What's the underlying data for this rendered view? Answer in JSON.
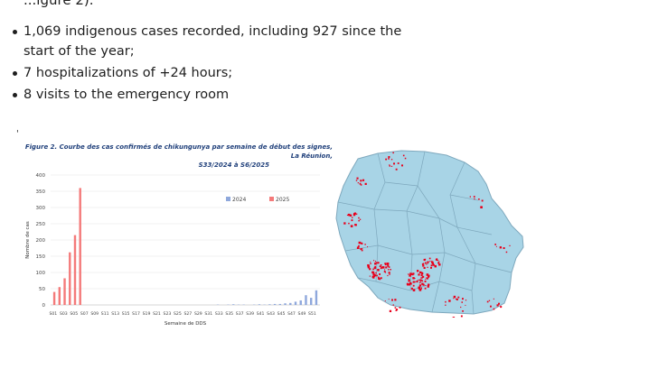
{
  "intro_partial": "...igure 2).",
  "bullets": [
    "1,069 indigenous cases recorded, including 927 since the start of the year;",
    "7 hospitalizations of +24 hours;",
    "8 visits to the emergency room"
  ],
  "stray_mark": "'",
  "figure": {
    "title_line1": "Figure 2. Courbe des cas confirmés de chikungunya par semaine de début des signes, La Réunion,",
    "title_line2": "S33/2024 à S6/2025"
  },
  "chart_data": {
    "type": "bar",
    "title": "Figure 2. Courbe des cas confirmés de chikungunya par semaine de début des signes, La Réunion, S33/2024 à S6/2025",
    "xlabel": "Semaine de DDS",
    "ylabel": "Nombre de cas",
    "ylim": [
      0,
      400
    ],
    "yticks": [
      0,
      50,
      100,
      150,
      200,
      250,
      300,
      350,
      400
    ],
    "grid": true,
    "legend_placement": "top-right",
    "categories": [
      "S01",
      "S02",
      "S03",
      "S04",
      "S05",
      "S06",
      "S07",
      "S08",
      "S09",
      "S10",
      "S11",
      "S12",
      "S13",
      "S14",
      "S15",
      "S16",
      "S17",
      "S18",
      "S19",
      "S20",
      "S21",
      "S22",
      "S23",
      "S24",
      "S25",
      "S26",
      "S27",
      "S28",
      "S29",
      "S30",
      "S31",
      "S32",
      "S33",
      "S34",
      "S35",
      "S36",
      "S37",
      "S38",
      "S39",
      "S40",
      "S41",
      "S42",
      "S43",
      "S44",
      "S45",
      "S46",
      "S47",
      "S48",
      "S49",
      "S50",
      "S51",
      "S52"
    ],
    "tick_labels": [
      "S01",
      "S03",
      "S05",
      "S07",
      "S09",
      "S11",
      "S13",
      "S15",
      "S17",
      "S19",
      "S21",
      "S23",
      "S25",
      "S27",
      "S29",
      "S31",
      "S33",
      "S35",
      "S37",
      "S39",
      "S41",
      "S43",
      "S45",
      "S47",
      "S49",
      "S51"
    ],
    "series": [
      {
        "name": "2024",
        "color": "#8fa8dc",
        "values": [
          0,
          0,
          0,
          0,
          0,
          0,
          0,
          0,
          0,
          0,
          0,
          0,
          0,
          0,
          0,
          0,
          0,
          0,
          0,
          0,
          0,
          0,
          0,
          0,
          0,
          0,
          0,
          0,
          0,
          0,
          0,
          0,
          1,
          0,
          1,
          2,
          1,
          1,
          0,
          1,
          2,
          1,
          2,
          3,
          3,
          5,
          6,
          10,
          14,
          30,
          22,
          45
        ]
      },
      {
        "name": "2025",
        "color": "#f47a7a",
        "values": [
          40,
          55,
          82,
          162,
          215,
          360,
          null,
          null,
          null,
          null,
          null,
          null,
          null,
          null,
          null,
          null,
          null,
          null,
          null,
          null,
          null,
          null,
          null,
          null,
          null,
          null,
          null,
          null,
          null,
          null,
          null,
          null,
          null,
          null,
          null,
          null,
          null,
          null,
          null,
          null,
          null,
          null,
          null,
          null,
          null,
          null,
          null,
          null,
          null,
          null,
          null,
          null
        ]
      }
    ]
  },
  "map": {
    "land_color": "#a8d4e6",
    "border_color": "#7ea8bd",
    "dot_color": "#e8001c"
  }
}
